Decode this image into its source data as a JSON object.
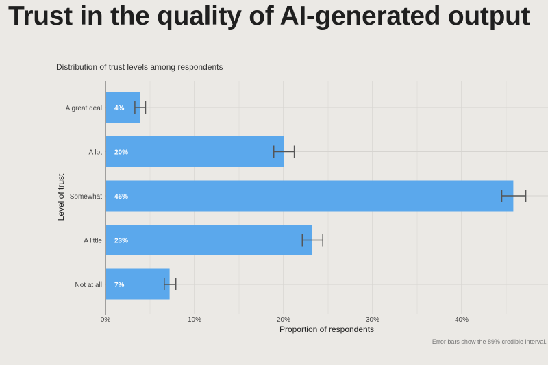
{
  "page": {
    "title": "Trust in the quality of AI-generated output"
  },
  "chart_data": {
    "type": "bar",
    "orientation": "horizontal",
    "subtitle": "Distribution of trust levels among respondents",
    "xlabel": "Proportion of respondents",
    "ylabel": "Level of trust",
    "xlim": [
      0,
      0.48
    ],
    "x_ticks": [
      0,
      0.1,
      0.2,
      0.3,
      0.4
    ],
    "x_tick_labels": [
      "0%",
      "10%",
      "20%",
      "30%",
      "40%"
    ],
    "grid": true,
    "bar_color": "#5ba8ec",
    "error_bar_color": "#555555",
    "categories": [
      "A great deal",
      "A lot",
      "Somewhat",
      "A little",
      "Not at all"
    ],
    "values": [
      0.039,
      0.2,
      0.458,
      0.232,
      0.072
    ],
    "value_labels": [
      "4%",
      "20%",
      "46%",
      "23%",
      "7%"
    ],
    "error_low": [
      0.033,
      0.189,
      0.445,
      0.221,
      0.066
    ],
    "error_high": [
      0.045,
      0.212,
      0.472,
      0.244,
      0.079
    ],
    "note": "Error bars show the 89% credible interval."
  }
}
